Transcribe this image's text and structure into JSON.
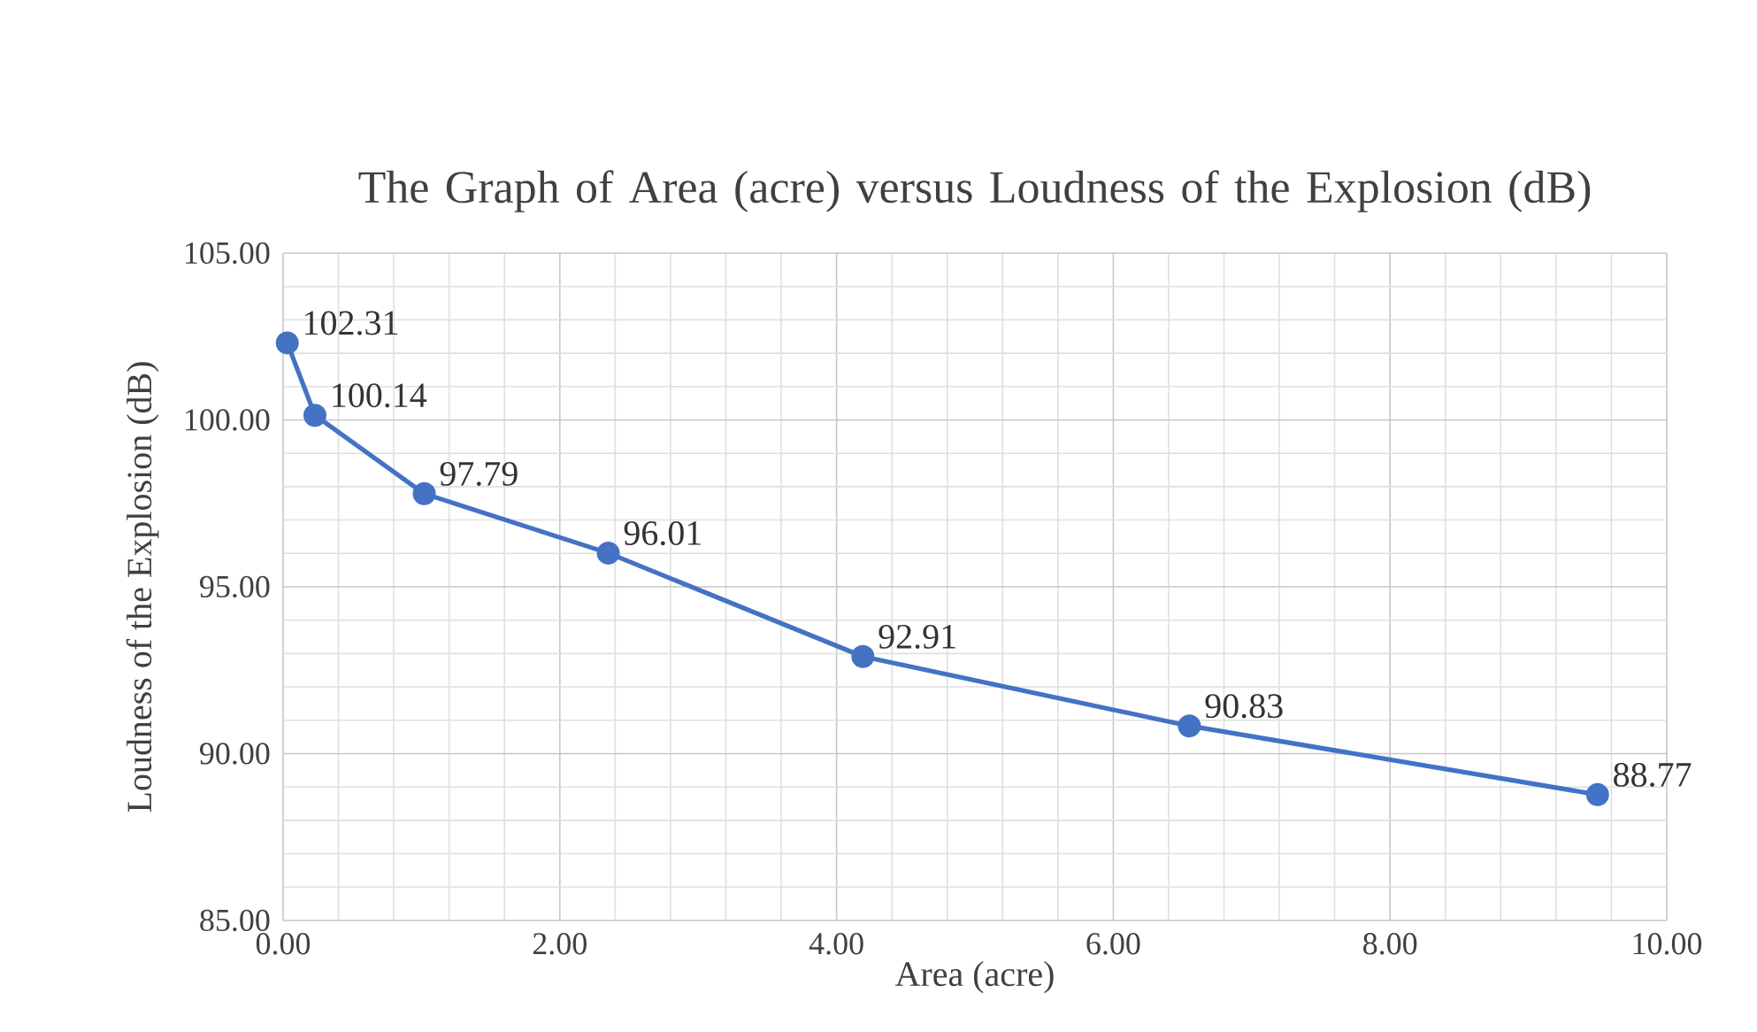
{
  "chart_data": {
    "type": "line",
    "title": "The Graph of Area (acre) versus Loudness of the Explosion (dB)",
    "xlabel": "Area (acre)",
    "ylabel": "Loudness of the Explosion (dB)",
    "x": [
      0.03,
      0.23,
      1.02,
      2.35,
      4.19,
      6.55,
      9.5
    ],
    "series": [
      {
        "color": "#4472c4",
        "values": [
          102.31,
          100.14,
          97.79,
          96.01,
          92.91,
          90.83,
          88.77
        ]
      }
    ],
    "xlim": [
      0,
      10
    ],
    "ylim": [
      85,
      105
    ],
    "xticks": [
      {
        "value": 0,
        "label": "0.00"
      },
      {
        "value": 2,
        "label": "2.00"
      },
      {
        "value": 4,
        "label": "4.00"
      },
      {
        "value": 6,
        "label": "6.00"
      },
      {
        "value": 8,
        "label": "8.00"
      },
      {
        "value": 10,
        "label": "10.00"
      }
    ],
    "yticks": [
      {
        "value": 85,
        "label": "85.00"
      },
      {
        "value": 90,
        "label": "90.00"
      },
      {
        "value": 95,
        "label": "95.00"
      },
      {
        "value": 100,
        "label": "100.00"
      },
      {
        "value": 105,
        "label": "105.00"
      }
    ],
    "grid": true,
    "marker": "circle",
    "line_style": "solid",
    "data_labels": true
  }
}
